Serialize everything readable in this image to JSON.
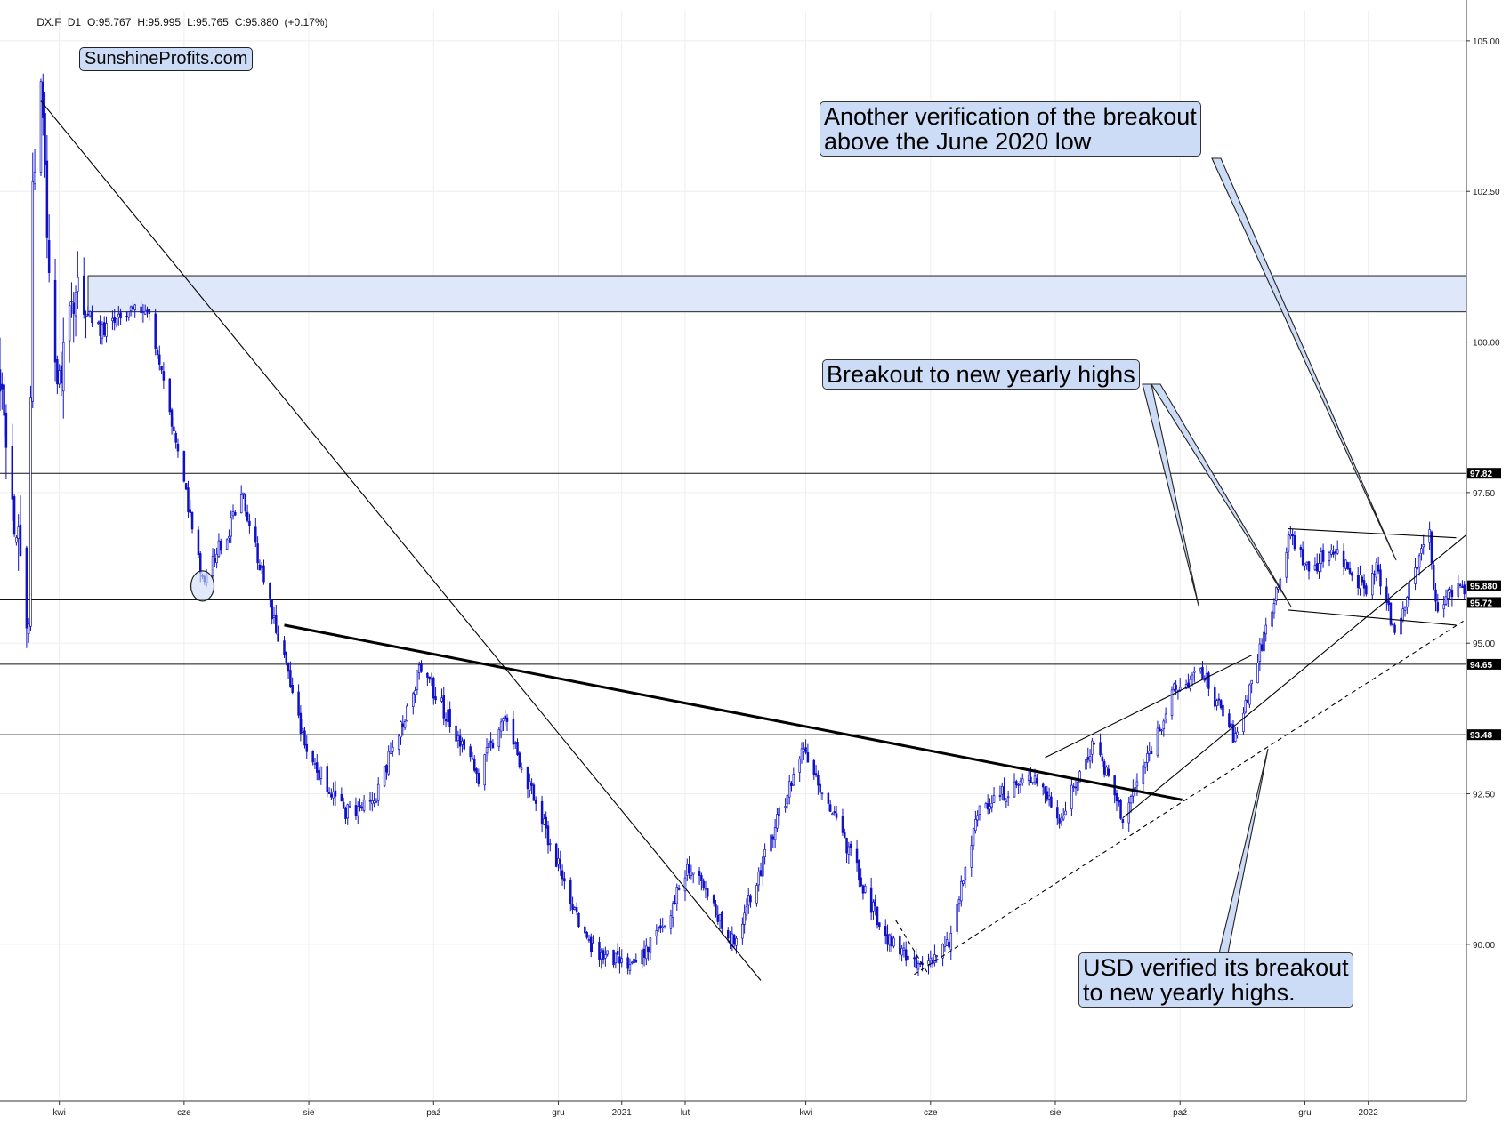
{
  "header": {
    "symbol": "DX.F",
    "interval": "D1",
    "open": "O:95.767",
    "high": "H:95.995",
    "low": "L:95.765",
    "close": "C:95.880",
    "change": "(+0.17%)"
  },
  "watermark": "SunshineProfits.com",
  "annotations": {
    "verification": {
      "line1": "Another verification of the breakout",
      "line2": "above the June 2020 low"
    },
    "breakout": {
      "line1": "Breakout to new yearly highs"
    },
    "usd": {
      "line1": "USD verified its breakout",
      "line2": "to new yearly highs."
    }
  },
  "colors": {
    "candle": "#1010c8",
    "zone_fill": "#dfe7fa",
    "callout_fill": "#cddcf6",
    "line": "#000000",
    "grid": "#eeeeee"
  },
  "chart_data": {
    "type": "candlestick",
    "instrument": "DX.F",
    "interval": "D1",
    "x_axis": {
      "ticks": [
        {
          "label": "kwi",
          "x": "2020-04-01"
        },
        {
          "label": "cze",
          "x": "2020-06-01"
        },
        {
          "label": "sie",
          "x": "2020-08-01"
        },
        {
          "label": "paź",
          "x": "2020-10-01"
        },
        {
          "label": "gru",
          "x": "2020-12-01"
        },
        {
          "label": "2021",
          "x": "2021-01-01"
        },
        {
          "label": "lut",
          "x": "2021-02-01"
        },
        {
          "label": "kwi",
          "x": "2021-04-01"
        },
        {
          "label": "cze",
          "x": "2021-06-01"
        },
        {
          "label": "sie",
          "x": "2021-08-01"
        },
        {
          "label": "paź",
          "x": "2021-10-01"
        },
        {
          "label": "gru",
          "x": "2021-12-01"
        },
        {
          "label": "2022",
          "x": "2022-01-01"
        }
      ],
      "range": [
        "2020-03-03",
        "2022-02-18"
      ]
    },
    "y_axis": {
      "ticks": [
        "105.00",
        "102.50",
        "100.00",
        "97.50",
        "95.00",
        "92.50",
        "90.00"
      ],
      "range": [
        87.4,
        105.5
      ]
    },
    "price_levels": [
      {
        "label": "97.82",
        "value": 97.82
      },
      {
        "label": "95.880",
        "value": 95.88,
        "type": "last"
      },
      {
        "label": "95.72",
        "value": 95.72
      },
      {
        "label": "94.65",
        "value": 94.65
      },
      {
        "label": "93.48",
        "value": 93.48
      }
    ],
    "resistance_zone": [
      100.5,
      101.1
    ],
    "anchors": [
      [
        "2020-03-03",
        99.6
      ],
      [
        "2020-03-10",
        97.2
      ],
      [
        "2020-03-17",
        95.2
      ],
      [
        "2020-03-19",
        102.6
      ],
      [
        "2020-03-23",
        103.9
      ],
      [
        "2020-03-31",
        99.1
      ],
      [
        "2020-04-06",
        100.8
      ],
      [
        "2020-04-22",
        100.2
      ],
      [
        "2020-05-14",
        100.6
      ],
      [
        "2020-05-29",
        98.2
      ],
      [
        "2020-06-10",
        96.0
      ],
      [
        "2020-06-30",
        97.4
      ],
      [
        "2020-07-31",
        93.2
      ],
      [
        "2020-08-18",
        92.2
      ],
      [
        "2020-09-01",
        92.3
      ],
      [
        "2020-09-25",
        94.6
      ],
      [
        "2020-10-23",
        92.8
      ],
      [
        "2020-11-04",
        93.8
      ],
      [
        "2020-12-01",
        91.3
      ],
      [
        "2020-12-17",
        89.9
      ],
      [
        "2021-01-06",
        89.6
      ],
      [
        "2021-01-21",
        90.3
      ],
      [
        "2021-02-03",
        91.3
      ],
      [
        "2021-02-25",
        90.0
      ],
      [
        "2021-03-31",
        93.3
      ],
      [
        "2021-05-10",
        90.1
      ],
      [
        "2021-05-25",
        89.6
      ],
      [
        "2021-06-10",
        90.0
      ],
      [
        "2021-06-25",
        92.3
      ],
      [
        "2021-07-22",
        92.8
      ],
      [
        "2021-08-04",
        92.1
      ],
      [
        "2021-08-20",
        93.4
      ],
      [
        "2021-09-03",
        92.1
      ],
      [
        "2021-09-28",
        94.2
      ],
      [
        "2021-10-12",
        94.5
      ],
      [
        "2021-10-28",
        93.4
      ],
      [
        "2021-11-10",
        95.0
      ],
      [
        "2021-11-24",
        96.8
      ],
      [
        "2021-12-03",
        96.2
      ],
      [
        "2021-12-15",
        96.6
      ],
      [
        "2021-12-30",
        95.9
      ],
      [
        "2022-01-05",
        96.2
      ],
      [
        "2022-01-14",
        95.2
      ],
      [
        "2022-01-21",
        95.9
      ],
      [
        "2022-01-31",
        96.9
      ],
      [
        "2022-02-03",
        95.6
      ],
      [
        "2022-02-15",
        96.0
      ],
      [
        "2022-02-17",
        95.88
      ]
    ],
    "trendlines": [
      {
        "from": [
          "2020-03-23",
          104.0
        ],
        "to": [
          "2021-03-10",
          89.4
        ],
        "style": "thin"
      },
      {
        "from": [
          "2020-07-20",
          95.3
        ],
        "to": [
          "2021-10-02",
          92.4
        ],
        "style": "thick"
      },
      {
        "from": [
          "2021-07-27",
          93.1
        ],
        "to": [
          "2021-11-05",
          94.8
        ],
        "style": "thin"
      },
      {
        "from": [
          "2021-09-03",
          92.1
        ],
        "to": [
          "2022-02-18",
          96.8
        ],
        "style": "thin"
      },
      {
        "from": [
          "2021-05-24",
          89.5
        ],
        "to": [
          "2022-02-18",
          95.4
        ],
        "style": "dashed"
      },
      {
        "from": [
          "2021-05-15",
          90.4
        ],
        "to": [
          "2021-05-31",
          89.5
        ],
        "style": "dashed"
      },
      {
        "from": [
          "2021-11-23",
          96.9
        ],
        "to": [
          "2022-02-13",
          96.75
        ],
        "style": "thin"
      },
      {
        "from": [
          "2021-11-23",
          95.55
        ],
        "to": [
          "2022-02-13",
          95.3
        ],
        "style": "thin"
      }
    ],
    "highlight_circle": {
      "x": "2020-06-10",
      "y": 95.95
    }
  }
}
